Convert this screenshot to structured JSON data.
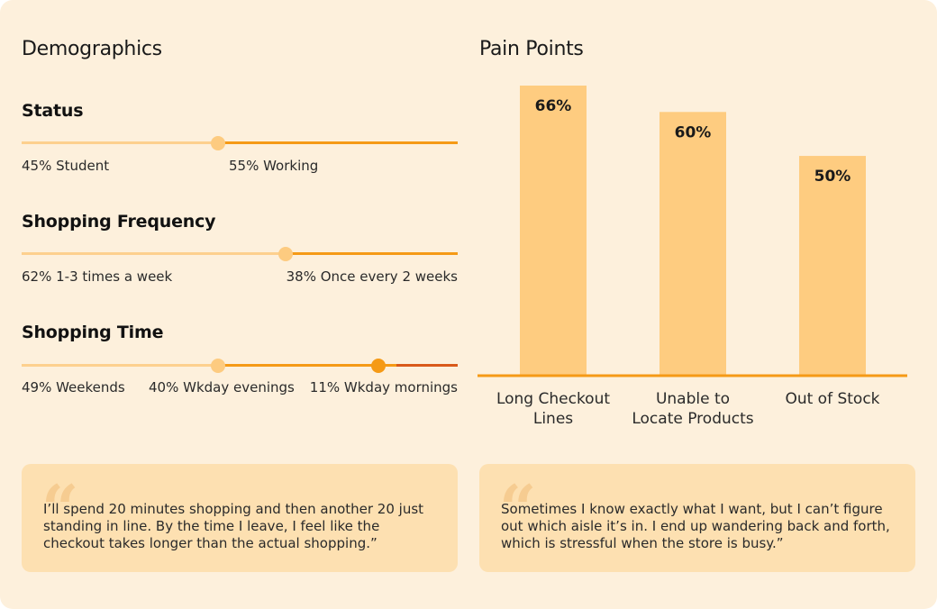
{
  "demographics": {
    "title": "Demographics",
    "status": {
      "title": "Status",
      "split": [
        45,
        55
      ],
      "labels": [
        "45% Student",
        "55% Working"
      ]
    },
    "frequency": {
      "title": "Shopping Frequency",
      "split": [
        62,
        38
      ],
      "labels": [
        "62% 1-3 times a week",
        "38% Once every 2 weeks"
      ]
    },
    "time": {
      "title": "Shopping Time",
      "split": [
        49,
        40,
        11
      ],
      "labels": [
        "49% Weekends",
        "40% Wkday evenings",
        "11% Wkday mornings"
      ]
    }
  },
  "pain_points": {
    "title": "Pain Points"
  },
  "chart_data": {
    "type": "bar",
    "title": "Pain Points",
    "categories": [
      [
        "Long Checkout",
        "Lines"
      ],
      [
        "Unable to",
        "Locate Products"
      ],
      [
        "Out of Stock"
      ]
    ],
    "values": [
      66,
      60,
      50
    ],
    "value_labels": [
      "66%",
      "60%",
      "50%"
    ],
    "ylim": [
      0,
      66
    ],
    "grid": false
  },
  "quotes": [
    "I’ll spend 20 minutes shopping and then another 20 just standing in line. By the time I leave, I feel like the checkout takes longer than the actual shopping.”",
    "Sometimes I know exactly what I want, but I can’t figure out which aisle it’s in. I end up wandering back and forth, which is stressful when the store is busy.”"
  ],
  "quote_mark": "“",
  "colors": {
    "light": "#fdd08e",
    "mid": "#f59a16",
    "dark": "#d9591a",
    "bar": "#fecc80",
    "axis": "#f59a16"
  }
}
